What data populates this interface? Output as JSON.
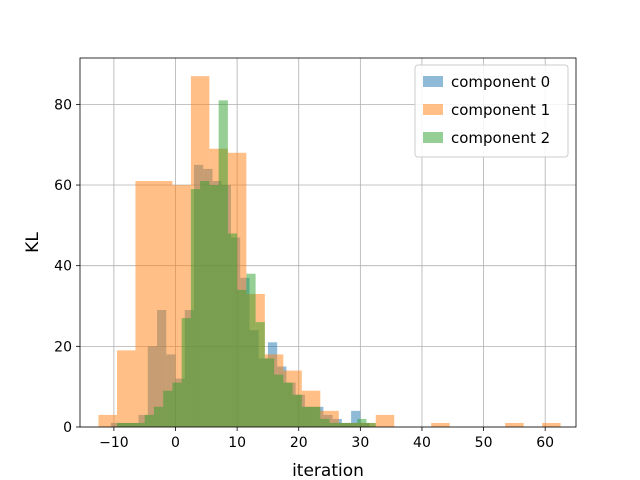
{
  "chart_data": {
    "type": "histogram",
    "xlabel": "iteration",
    "ylabel": "KL",
    "xlim": [
      -15.5,
      65
    ],
    "ylim": [
      0,
      91.5
    ],
    "xticks": [
      -10,
      0,
      10,
      20,
      30,
      40,
      50,
      60
    ],
    "yticks": [
      0,
      20,
      40,
      60,
      80
    ],
    "grid": true,
    "legend_position": "top-right",
    "series": [
      {
        "name": "component 0",
        "color": "#1f77b4",
        "alpha": 0.5,
        "bins": [
          {
            "x0": -10.5,
            "x1": -9.0,
            "count": 1
          },
          {
            "x0": -9.0,
            "x1": -7.5,
            "count": 1
          },
          {
            "x0": -7.5,
            "x1": -6.0,
            "count": 1
          },
          {
            "x0": -6.0,
            "x1": -4.5,
            "count": 3
          },
          {
            "x0": -4.5,
            "x1": -3.0,
            "count": 20
          },
          {
            "x0": -3.0,
            "x1": -1.5,
            "count": 29
          },
          {
            "x0": -1.5,
            "x1": 0.0,
            "count": 18
          },
          {
            "x0": 0.0,
            "x1": 1.5,
            "count": 12
          },
          {
            "x0": 1.5,
            "x1": 3.0,
            "count": 29
          },
          {
            "x0": 3.0,
            "x1": 4.5,
            "count": 65
          },
          {
            "x0": 4.5,
            "x1": 6.0,
            "count": 64
          },
          {
            "x0": 6.0,
            "x1": 7.5,
            "count": 61
          },
          {
            "x0": 7.5,
            "x1": 9.0,
            "count": 60
          },
          {
            "x0": 9.0,
            "x1": 10.5,
            "count": 47
          },
          {
            "x0": 10.5,
            "x1": 12.0,
            "count": 37
          },
          {
            "x0": 12.0,
            "x1": 13.5,
            "count": 24
          },
          {
            "x0": 13.5,
            "x1": 15.0,
            "count": 17
          },
          {
            "x0": 15.0,
            "x1": 16.5,
            "count": 21
          },
          {
            "x0": 16.5,
            "x1": 18.0,
            "count": 15
          },
          {
            "x0": 18.0,
            "x1": 19.5,
            "count": 11
          },
          {
            "x0": 19.5,
            "x1": 21.0,
            "count": 8
          },
          {
            "x0": 21.0,
            "x1": 22.5,
            "count": 5
          },
          {
            "x0": 22.5,
            "x1": 24.0,
            "count": 5
          },
          {
            "x0": 24.0,
            "x1": 25.5,
            "count": 3
          },
          {
            "x0": 25.5,
            "x1": 27.0,
            "count": 2
          },
          {
            "x0": 27.0,
            "x1": 28.5,
            "count": 1
          },
          {
            "x0": 28.5,
            "x1": 30.0,
            "count": 4
          },
          {
            "x0": 30.0,
            "x1": 31.5,
            "count": 1
          }
        ]
      },
      {
        "name": "component 1",
        "color": "#ff7f0e",
        "alpha": 0.5,
        "bins": [
          {
            "x0": -12.5,
            "x1": -9.5,
            "count": 3
          },
          {
            "x0": -9.5,
            "x1": -6.5,
            "count": 19
          },
          {
            "x0": -6.5,
            "x1": -3.5,
            "count": 61
          },
          {
            "x0": -3.5,
            "x1": -0.5,
            "count": 61
          },
          {
            "x0": -0.5,
            "x1": 2.5,
            "count": 60
          },
          {
            "x0": 2.5,
            "x1": 5.5,
            "count": 87
          },
          {
            "x0": 5.5,
            "x1": 8.5,
            "count": 69
          },
          {
            "x0": 8.5,
            "x1": 11.5,
            "count": 68
          },
          {
            "x0": 11.5,
            "x1": 14.5,
            "count": 33
          },
          {
            "x0": 14.5,
            "x1": 17.5,
            "count": 18
          },
          {
            "x0": 17.5,
            "x1": 20.5,
            "count": 14
          },
          {
            "x0": 20.5,
            "x1": 23.5,
            "count": 9
          },
          {
            "x0": 23.5,
            "x1": 26.5,
            "count": 4
          },
          {
            "x0": 26.5,
            "x1": 29.5,
            "count": 1
          },
          {
            "x0": 29.5,
            "x1": 32.5,
            "count": 1
          },
          {
            "x0": 32.5,
            "x1": 35.5,
            "count": 3
          },
          {
            "x0": 35.5,
            "x1": 38.5,
            "count": 0
          },
          {
            "x0": 38.5,
            "x1": 41.5,
            "count": 0
          },
          {
            "x0": 41.5,
            "x1": 44.5,
            "count": 1
          },
          {
            "x0": 44.5,
            "x1": 47.5,
            "count": 0
          },
          {
            "x0": 47.5,
            "x1": 50.5,
            "count": 0
          },
          {
            "x0": 50.5,
            "x1": 53.5,
            "count": 0
          },
          {
            "x0": 53.5,
            "x1": 56.5,
            "count": 1
          },
          {
            "x0": 56.5,
            "x1": 59.5,
            "count": 0
          },
          {
            "x0": 59.5,
            "x1": 62.5,
            "count": 1
          }
        ]
      },
      {
        "name": "component 2",
        "color": "#2ca02c",
        "alpha": 0.5,
        "bins": [
          {
            "x0": -9.5,
            "x1": -8.0,
            "count": 1
          },
          {
            "x0": -8.0,
            "x1": -6.5,
            "count": 1
          },
          {
            "x0": -6.5,
            "x1": -5.0,
            "count": 1
          },
          {
            "x0": -5.0,
            "x1": -3.5,
            "count": 3
          },
          {
            "x0": -3.5,
            "x1": -2.0,
            "count": 5
          },
          {
            "x0": -2.0,
            "x1": -0.5,
            "count": 9
          },
          {
            "x0": -0.5,
            "x1": 1.0,
            "count": 11
          },
          {
            "x0": 1.0,
            "x1": 2.5,
            "count": 27
          },
          {
            "x0": 2.5,
            "x1": 4.0,
            "count": 59
          },
          {
            "x0": 4.0,
            "x1": 5.5,
            "count": 61
          },
          {
            "x0": 5.5,
            "x1": 7.0,
            "count": 60
          },
          {
            "x0": 7.0,
            "x1": 8.5,
            "count": 81
          },
          {
            "x0": 8.5,
            "x1": 10.0,
            "count": 48
          },
          {
            "x0": 10.0,
            "x1": 11.5,
            "count": 34
          },
          {
            "x0": 11.5,
            "x1": 13.0,
            "count": 38
          },
          {
            "x0": 13.0,
            "x1": 14.5,
            "count": 26
          },
          {
            "x0": 14.5,
            "x1": 16.0,
            "count": 17
          },
          {
            "x0": 16.0,
            "x1": 17.5,
            "count": 13
          },
          {
            "x0": 17.5,
            "x1": 19.0,
            "count": 11
          },
          {
            "x0": 19.0,
            "x1": 20.5,
            "count": 8
          },
          {
            "x0": 20.5,
            "x1": 22.0,
            "count": 5
          },
          {
            "x0": 22.0,
            "x1": 23.5,
            "count": 5
          },
          {
            "x0": 23.5,
            "x1": 25.0,
            "count": 2
          },
          {
            "x0": 25.0,
            "x1": 26.5,
            "count": 1
          },
          {
            "x0": 26.5,
            "x1": 28.0,
            "count": 1
          },
          {
            "x0": 28.0,
            "x1": 29.5,
            "count": 1
          },
          {
            "x0": 29.5,
            "x1": 31.0,
            "count": 2
          },
          {
            "x0": 31.0,
            "x1": 32.5,
            "count": 1
          }
        ]
      }
    ]
  }
}
